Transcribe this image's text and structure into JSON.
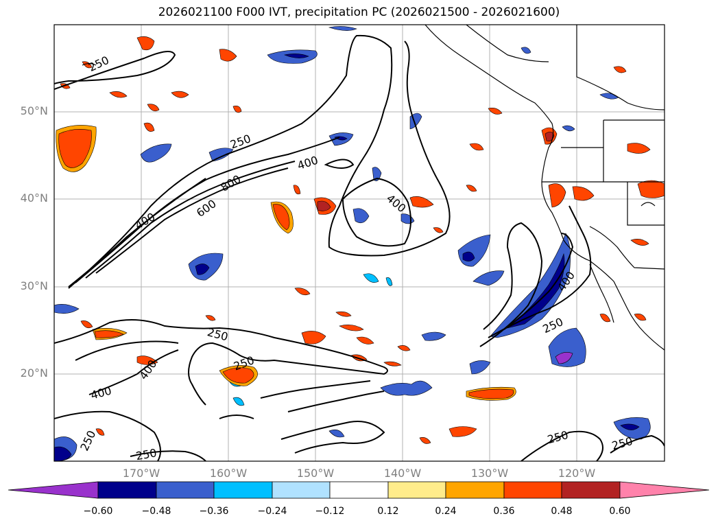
{
  "title": "2026021100 F000 IVT, precipitation PC (2026021500 - 2026021600)",
  "map": {
    "lat_labels": [
      "50°N",
      "40°N",
      "30°N",
      "20°N"
    ],
    "lon_labels": [
      "170°W",
      "160°W",
      "150°W",
      "140°W",
      "130°W",
      "120°W"
    ],
    "ivt_contour_labels": [
      "250",
      "250",
      "400",
      "800",
      "600",
      "400",
      "400",
      "400",
      "250",
      "250",
      "400",
      "400",
      "250",
      "250",
      "250",
      "250",
      "250"
    ]
  },
  "colorbar": {
    "ticks": [
      "−0.60",
      "−0.48",
      "−0.36",
      "−0.24",
      "−0.12",
      "0.12",
      "0.24",
      "0.36",
      "0.48",
      "0.60"
    ],
    "colors": [
      "#9932CC",
      "#00008B",
      "#3A5FCD",
      "#00BFFF",
      "#B0E2FF",
      "#FFFFFF",
      "#FFEC8B",
      "#FFA500",
      "#FF4500",
      "#B22222",
      "#FF82AB"
    ]
  }
}
